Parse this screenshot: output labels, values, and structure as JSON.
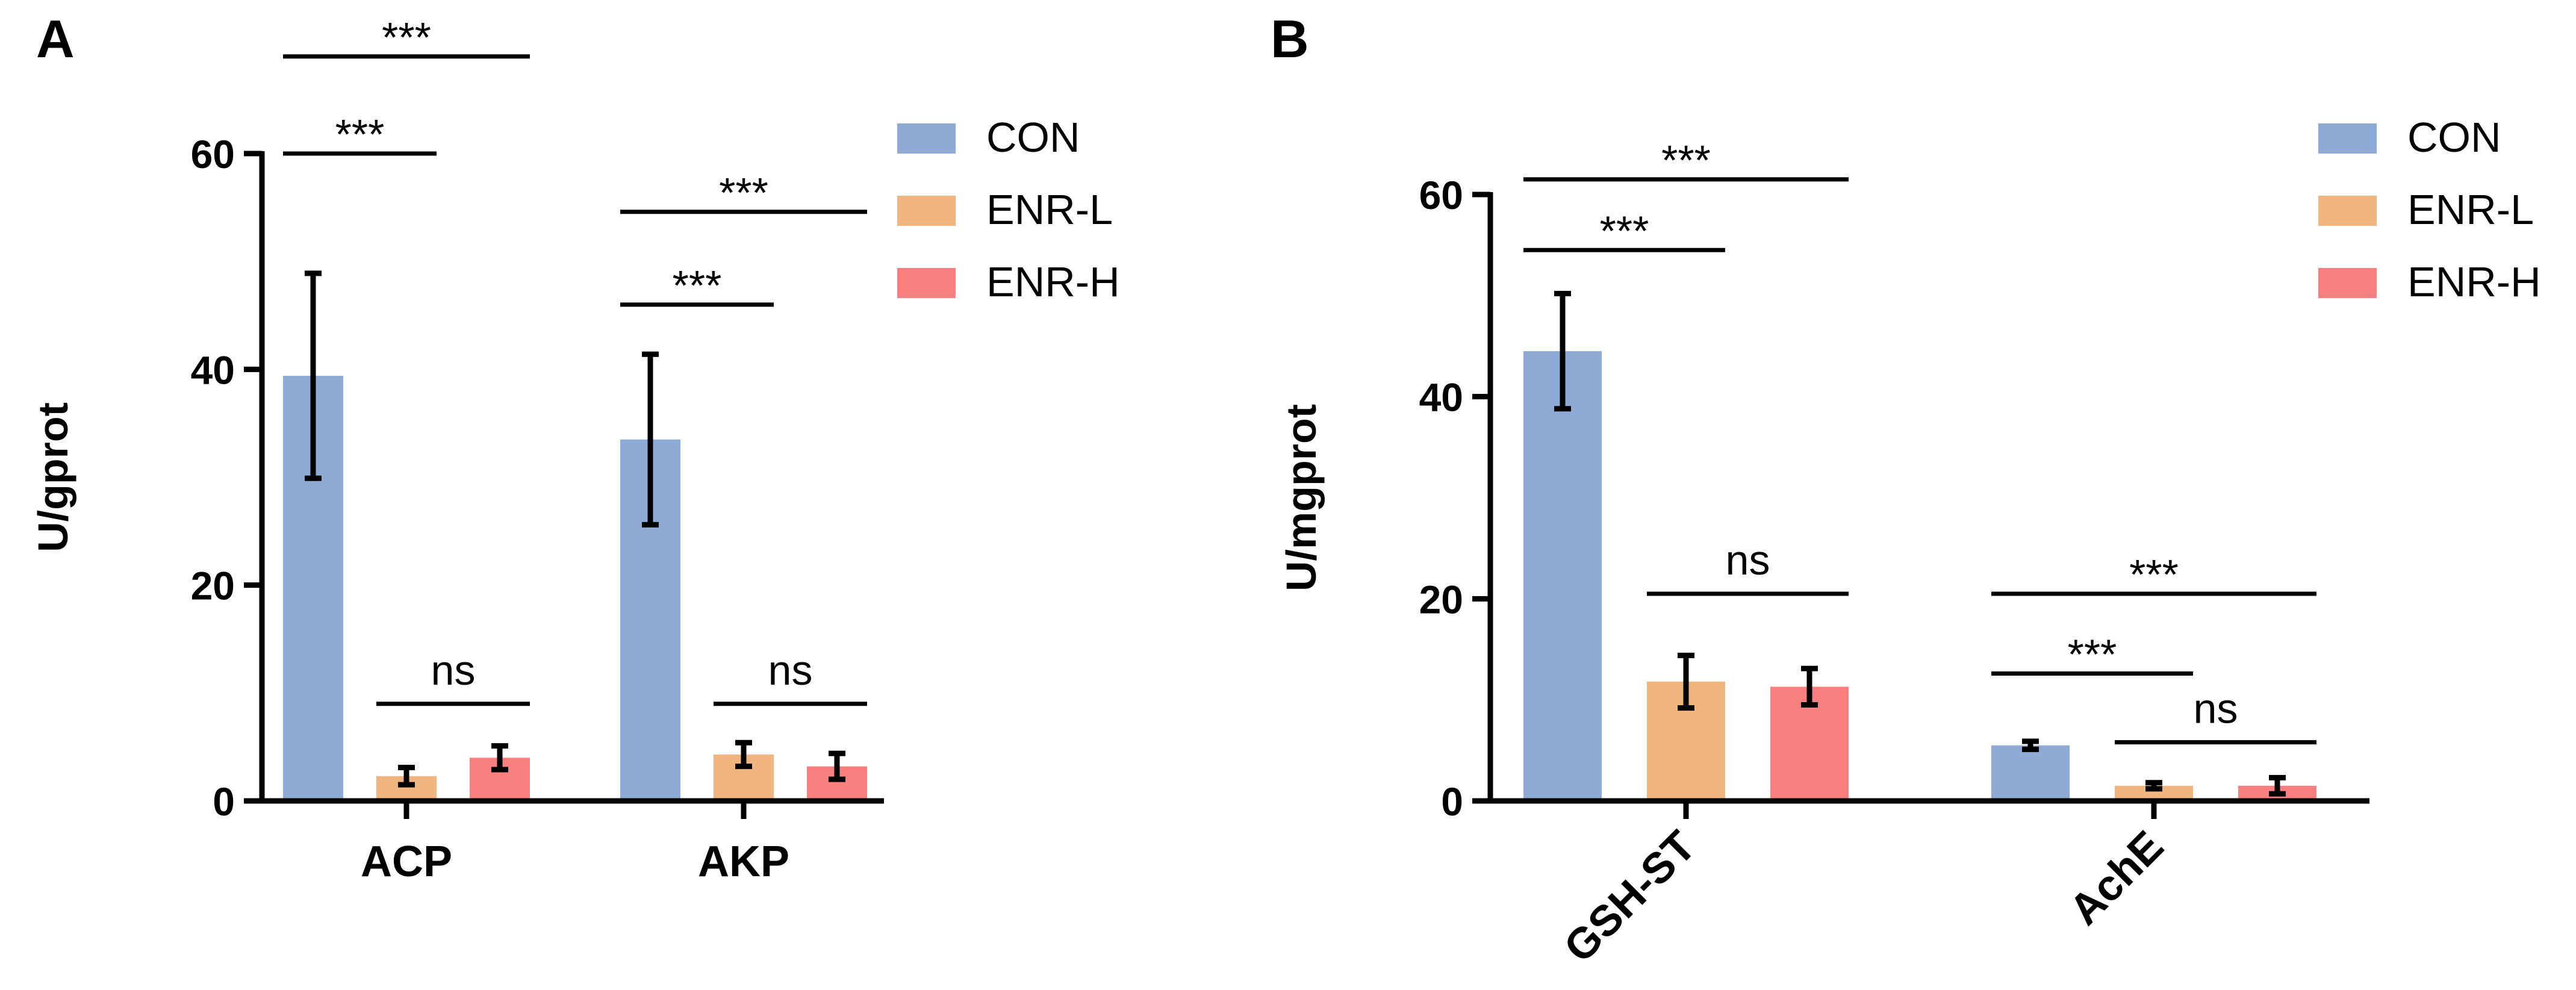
{
  "chart_data": [
    {
      "type": "bar",
      "panel": "A",
      "ylabel": "U/gprot",
      "xlabel": "",
      "ylim": [
        0,
        60
      ],
      "yticks": [
        0,
        20,
        40,
        60
      ],
      "categories": [
        "ACP",
        "AKP"
      ],
      "series": [
        {
          "name": "CON",
          "color": "#8eabd5",
          "values": [
            39.4,
            33.5
          ],
          "errors": [
            9.5,
            7.9
          ]
        },
        {
          "name": "ENR-L",
          "color": "#f1b57f",
          "values": [
            2.3,
            4.3
          ],
          "errors": [
            0.8,
            1.1
          ]
        },
        {
          "name": "ENR-H",
          "color": "#fa7f7f",
          "values": [
            4.0,
            3.2
          ],
          "errors": [
            1.1,
            1.2
          ]
        }
      ],
      "significance": [
        {
          "category": 0,
          "from": 0,
          "to": 1,
          "level": 60,
          "label": "***"
        },
        {
          "category": 0,
          "from": 0,
          "to": 2,
          "level": 69,
          "label": "***"
        },
        {
          "category": 0,
          "from": 1,
          "to": 2,
          "level": 9,
          "label": "ns"
        },
        {
          "category": 1,
          "from": 0,
          "to": 1,
          "level": 46,
          "label": "***"
        },
        {
          "category": 1,
          "from": 0,
          "to": 2,
          "level": 54.6,
          "label": "***"
        },
        {
          "category": 1,
          "from": 1,
          "to": 2,
          "level": 9,
          "label": "ns"
        }
      ]
    },
    {
      "type": "bar",
      "panel": "B",
      "ylabel": "U/mgprot",
      "xlabel": "",
      "ylim": [
        0,
        60
      ],
      "yticks": [
        0,
        20,
        40,
        60
      ],
      "categories": [
        "GSH-ST",
        "AchE"
      ],
      "series": [
        {
          "name": "CON",
          "color": "#8eabd5",
          "values": [
            44.5,
            5.5
          ],
          "errors": [
            5.7,
            0.4
          ]
        },
        {
          "name": "ENR-L",
          "color": "#f1b57f",
          "values": [
            11.8,
            1.5
          ],
          "errors": [
            2.6,
            0.3
          ]
        },
        {
          "name": "ENR-H",
          "color": "#fa7f7f",
          "values": [
            11.3,
            1.5
          ],
          "errors": [
            1.8,
            0.8
          ]
        }
      ],
      "significance": [
        {
          "category": 0,
          "from": 0,
          "to": 1,
          "level": 54.5,
          "label": "***"
        },
        {
          "category": 0,
          "from": 0,
          "to": 2,
          "level": 61.5,
          "label": "***"
        },
        {
          "category": 0,
          "from": 1,
          "to": 2,
          "level": 20.5,
          "label": "ns"
        },
        {
          "category": 1,
          "from": 0,
          "to": 1,
          "level": 12.6,
          "label": "***"
        },
        {
          "category": 1,
          "from": 0,
          "to": 2,
          "level": 20.5,
          "label": "***"
        },
        {
          "category": 1,
          "from": 1,
          "to": 2,
          "level": 5.8,
          "label": "ns"
        }
      ]
    }
  ],
  "panels": [
    {
      "letter": "A"
    },
    {
      "letter": "B"
    }
  ]
}
